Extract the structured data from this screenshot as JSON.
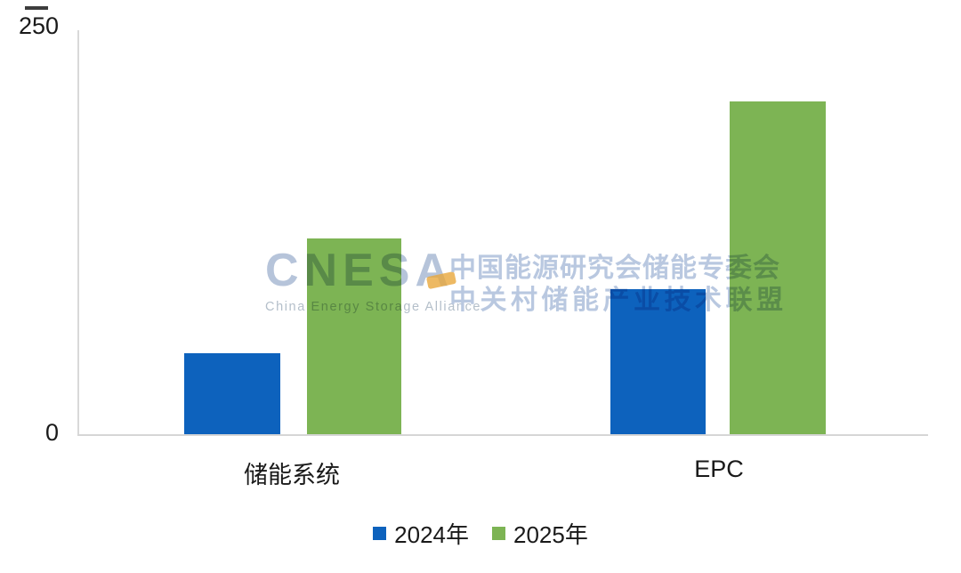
{
  "chart_data": {
    "type": "bar",
    "title": "",
    "categories": [
      "储能系统",
      "EPC"
    ],
    "series": [
      {
        "name": "2024年",
        "color": "#0d62bd",
        "values": [
          50,
          90
        ]
      },
      {
        "name": "2025年",
        "color": "#7db454",
        "values": [
          121,
          206
        ]
      }
    ],
    "xlabel": "",
    "ylabel": "",
    "ylim": [
      0,
      250
    ],
    "yticks": [
      0,
      250
    ],
    "grid": false,
    "legend_position": "bottom"
  },
  "watermark": {
    "logo_text": "CNESA",
    "logo_subtext": "China Energy Storage Alliance",
    "org_line1": "中国能源研究会储能专委会",
    "org_line2": "中关村储能产业技术联盟",
    "text_color": "#b6c4da",
    "accent_color": "#e8a83c"
  }
}
